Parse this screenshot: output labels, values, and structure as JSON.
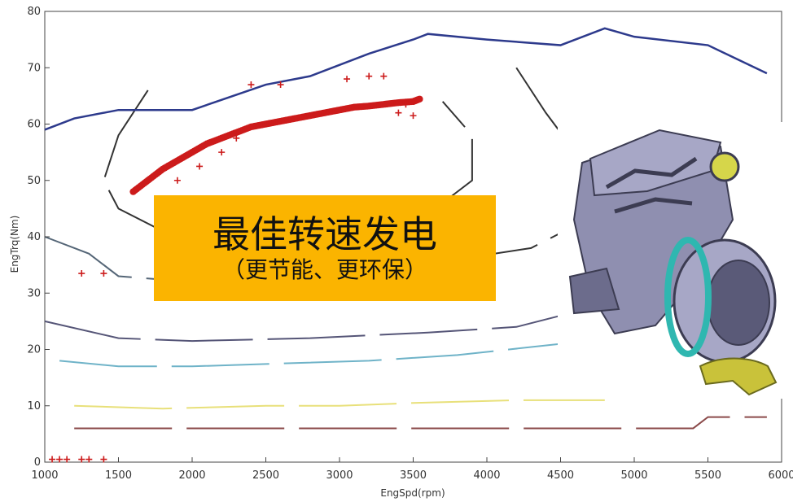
{
  "chart_data": {
    "type": "scatter",
    "xlabel": "EngSpd(rpm)",
    "ylabel": "EngTrq(Nm)",
    "xlim": [
      1000,
      6000
    ],
    "ylim": [
      0,
      80
    ],
    "xticks": [
      1000,
      1500,
      2000,
      2500,
      3000,
      3500,
      4000,
      4500,
      5000,
      5500,
      6000
    ],
    "yticks": [
      0,
      10,
      20,
      30,
      40,
      50,
      60,
      70,
      80
    ],
    "max_torque_curve": {
      "color": "#2d3a8c",
      "x": [
        1000,
        1200,
        1500,
        2000,
        2500,
        2800,
        3200,
        3500,
        3600,
        4000,
        4500,
        4800,
        5000,
        5500,
        5900
      ],
      "y": [
        59,
        61,
        62.5,
        62.5,
        67,
        68.5,
        72.5,
        75,
        76,
        75,
        74,
        77,
        75.5,
        74,
        69
      ]
    },
    "contours": [
      {
        "color": "#8b4a4a",
        "x": [
          1200,
          3000,
          3200,
          5400,
          5500,
          5900
        ],
        "y": [
          6,
          6,
          6,
          6,
          8,
          8
        ]
      },
      {
        "color": "#e8e07a",
        "x": [
          1200,
          1800,
          2500,
          3000,
          3500,
          4200,
          4800
        ],
        "y": [
          10,
          9.5,
          10,
          10,
          10.5,
          11,
          11
        ]
      },
      {
        "color": "#6fb3c8",
        "x": [
          1100,
          1500,
          2000,
          2600,
          3200,
          3800,
          4500
        ],
        "y": [
          18,
          17,
          17,
          17.5,
          18,
          19,
          21
        ]
      },
      {
        "color": "#555577",
        "x": [
          1000,
          1500,
          2000,
          2800,
          3200,
          3600,
          4200,
          4500
        ],
        "y": [
          25,
          22,
          21.5,
          22,
          22.5,
          23,
          24,
          26
        ]
      },
      {
        "color": "#556677",
        "x": [
          1000,
          1300,
          1500,
          2000,
          2400
        ],
        "y": [
          40,
          37,
          33,
          32,
          31
        ]
      },
      {
        "color": "#333333",
        "x": [
          1700,
          1500,
          1400,
          1500,
          1800,
          2400,
          3000,
          3600,
          3900,
          3900,
          3700
        ],
        "y": [
          66,
          58,
          50,
          45,
          41,
          40,
          41,
          44,
          50,
          58,
          64
        ]
      },
      {
        "color": "#333333",
        "x": [
          4200,
          4400,
          4600,
          4700,
          4600,
          4300,
          3800
        ],
        "y": [
          70,
          62,
          55,
          48,
          42,
          38,
          36
        ]
      }
    ],
    "operating_points": {
      "color": "#cc1b1b",
      "x": [
        1600,
        1700,
        1800,
        1900,
        2000,
        2100,
        2200,
        2300,
        2400,
        2500,
        2600,
        2700,
        2800,
        2900,
        3000,
        3100,
        3200,
        3300,
        3400,
        3500,
        3550
      ],
      "y": [
        48,
        50,
        52,
        53.5,
        55,
        56.5,
        57.5,
        58.5,
        59.5,
        60,
        60.5,
        61,
        61.5,
        62,
        62.5,
        63,
        63.2,
        63.5,
        63.8,
        64,
        64.5
      ]
    },
    "scattered_points": {
      "color": "#cc1b1b",
      "x": [
        1250,
        1400,
        1900,
        2050,
        2200,
        2300,
        2400,
        2600,
        3050,
        3200,
        3300,
        3400,
        3450,
        3500,
        1050,
        1100,
        1150,
        1250,
        1300,
        1400
      ],
      "y": [
        33.5,
        33.5,
        50,
        52.5,
        55,
        57.5,
        67,
        67,
        68,
        68.5,
        68.5,
        62,
        63.5,
        61.5,
        0.5,
        0.5,
        0.5,
        0.5,
        0.5,
        0.5
      ]
    }
  },
  "callout": {
    "title": "最佳转速发电",
    "subtitle": "（更节能、更环保）"
  },
  "colors": {
    "callout_bg": "#fbb400",
    "engine_body": "#8f8fb0",
    "engine_dark": "#3c3c52",
    "motor_ring": "#2fb7b0",
    "bracket": "#c9c23a"
  }
}
